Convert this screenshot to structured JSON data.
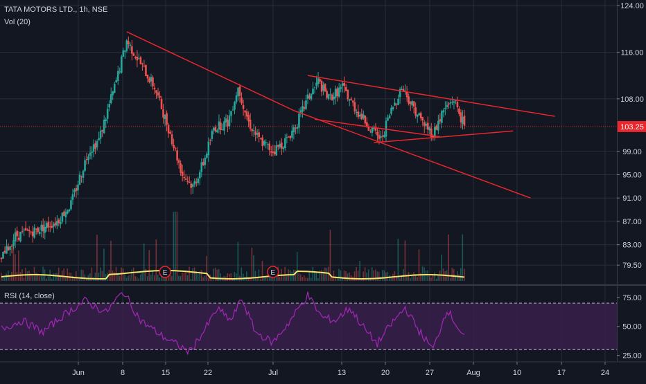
{
  "header": {
    "symbol_line": "TATA MOTORS LTD., 1h, NSE",
    "volume_label": "Vol (20)",
    "rsi_label": "RSI (14, close)"
  },
  "colors": {
    "background": "#131722",
    "grid": "#2a2e39",
    "up_candle": "#26a69a",
    "down_candle": "#ef5350",
    "trendline": "#e8262c",
    "volume_ma": "#f7e26b",
    "rsi_line": "#9c27b0",
    "rsi_band": "#3b1f4d",
    "price_tag": "#e8262c",
    "axis_text": "#d1d4dc"
  },
  "chart_data": {
    "type": "candlestick",
    "price_axis": {
      "ticks": [
        "124.00",
        "116.00",
        "108.00",
        "103.25",
        "99.00",
        "95.00",
        "91.00",
        "87.00",
        "83.00",
        "79.50"
      ],
      "ylim": [
        77.5,
        124
      ]
    },
    "last_price": "103.25",
    "rsi_axis": {
      "ticks": [
        "75.00",
        "50.00",
        "25.00"
      ],
      "ylim": [
        20,
        85
      ],
      "overbought": 70,
      "oversold": 30
    },
    "time_axis": {
      "labels": [
        "Jun",
        "8",
        "15",
        "22",
        "Jul",
        "13",
        "20",
        "27",
        "Aug",
        "10",
        "17",
        "24"
      ]
    },
    "price_path_waypoints": [
      {
        "t": 0,
        "p": 80.5
      },
      {
        "t": 4,
        "p": 84.5
      },
      {
        "t": 10,
        "p": 85.5
      },
      {
        "t": 16,
        "p": 87
      },
      {
        "t": 20,
        "p": 90
      },
      {
        "t": 25,
        "p": 99
      },
      {
        "t": 28,
        "p": 101
      },
      {
        "t": 33,
        "p": 111
      },
      {
        "t": 36,
        "p": 118
      },
      {
        "t": 40,
        "p": 114
      },
      {
        "t": 44,
        "p": 110
      },
      {
        "t": 48,
        "p": 103
      },
      {
        "t": 52,
        "p": 95
      },
      {
        "t": 55,
        "p": 93
      },
      {
        "t": 58,
        "p": 97
      },
      {
        "t": 61,
        "p": 103
      },
      {
        "t": 65,
        "p": 104
      },
      {
        "t": 68,
        "p": 110
      },
      {
        "t": 71,
        "p": 104
      },
      {
        "t": 74,
        "p": 101
      },
      {
        "t": 78,
        "p": 99
      },
      {
        "t": 82,
        "p": 101
      },
      {
        "t": 85,
        "p": 104
      },
      {
        "t": 88,
        "p": 108
      },
      {
        "t": 91,
        "p": 111
      },
      {
        "t": 94,
        "p": 108
      },
      {
        "t": 98,
        "p": 110
      },
      {
        "t": 102,
        "p": 106
      },
      {
        "t": 106,
        "p": 103
      },
      {
        "t": 109,
        "p": 101
      },
      {
        "t": 112,
        "p": 106
      },
      {
        "t": 115,
        "p": 110
      },
      {
        "t": 118,
        "p": 107
      },
      {
        "t": 121,
        "p": 104
      },
      {
        "t": 124,
        "p": 102
      },
      {
        "t": 127,
        "p": 106
      },
      {
        "t": 130,
        "p": 108
      },
      {
        "t": 133,
        "p": 103.25
      }
    ],
    "rsi_path_waypoints": [
      {
        "t": 0,
        "p": 48
      },
      {
        "t": 6,
        "p": 55
      },
      {
        "t": 12,
        "p": 45
      },
      {
        "t": 18,
        "p": 60
      },
      {
        "t": 24,
        "p": 72
      },
      {
        "t": 30,
        "p": 62
      },
      {
        "t": 35,
        "p": 80
      },
      {
        "t": 40,
        "p": 55
      },
      {
        "t": 46,
        "p": 42
      },
      {
        "t": 50,
        "p": 35
      },
      {
        "t": 54,
        "p": 28
      },
      {
        "t": 58,
        "p": 45
      },
      {
        "t": 62,
        "p": 65
      },
      {
        "t": 66,
        "p": 55
      },
      {
        "t": 69,
        "p": 74
      },
      {
        "t": 73,
        "p": 45
      },
      {
        "t": 78,
        "p": 36
      },
      {
        "t": 83,
        "p": 55
      },
      {
        "t": 88,
        "p": 77
      },
      {
        "t": 92,
        "p": 58
      },
      {
        "t": 96,
        "p": 55
      },
      {
        "t": 100,
        "p": 66
      },
      {
        "t": 105,
        "p": 45
      },
      {
        "t": 108,
        "p": 35
      },
      {
        "t": 112,
        "p": 52
      },
      {
        "t": 116,
        "p": 66
      },
      {
        "t": 120,
        "p": 46
      },
      {
        "t": 124,
        "p": 30
      },
      {
        "t": 128,
        "p": 65
      },
      {
        "t": 133,
        "p": 40
      }
    ],
    "volume_ma_level": 0.35,
    "earnings_markers": [
      {
        "label": "E",
        "t": 47
      },
      {
        "label": "E",
        "t": 78
      }
    ],
    "trendlines": [
      {
        "name": "upper-channel",
        "from": {
          "t": 36,
          "p": 119.5
        },
        "to": {
          "t": 84,
          "p": 106
        }
      },
      {
        "name": "lower-channel",
        "from": {
          "t": 84,
          "p": 106
        },
        "to": {
          "t": 152,
          "p": 91
        }
      },
      {
        "name": "wedge-top",
        "from": {
          "t": 88,
          "p": 112
        },
        "to": {
          "t": 159,
          "p": 105
        }
      },
      {
        "name": "wedge-bottom-falling",
        "from": {
          "t": 90,
          "p": 104.5
        },
        "to": {
          "t": 126,
          "p": 101.5
        }
      },
      {
        "name": "wedge-bottom-rising",
        "from": {
          "t": 107,
          "p": 100.5
        },
        "to": {
          "t": 147,
          "p": 102.5
        }
      }
    ]
  }
}
